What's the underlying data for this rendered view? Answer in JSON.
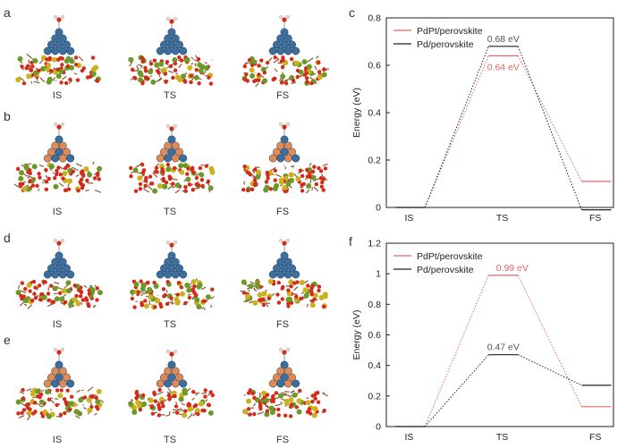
{
  "panels": {
    "a": {
      "letter": "a",
      "labels": [
        "IS",
        "TS",
        "FS"
      ]
    },
    "b": {
      "letter": "b",
      "labels": [
        "IS",
        "TS",
        "FS"
      ]
    },
    "d": {
      "letter": "d",
      "labels": [
        "IS",
        "TS",
        "FS"
      ]
    },
    "e": {
      "letter": "e",
      "labels": [
        "IS",
        "TS",
        "FS"
      ]
    }
  },
  "colors": {
    "pdpt": "#e06666",
    "pd": "#222222",
    "atom_pd": "#3d6e9e",
    "atom_pt": "#e08a55",
    "atom_o": "#d42a1a",
    "atom_la": "#6b9a2a",
    "atom_b": "#c9b21e"
  },
  "chart_data": [
    {
      "panel_letter": "c",
      "type": "line",
      "categories": [
        "IS",
        "TS",
        "FS"
      ],
      "ylabel": "Energy (eV)",
      "ylim": [
        0,
        0.8
      ],
      "yticks": [
        "0",
        "0.2",
        "0.4",
        "0.6",
        "0.8"
      ],
      "legend_position": "top-left",
      "series": [
        {
          "name": "PdPt/perovskite",
          "values": [
            0,
            0.64,
            0.11
          ],
          "color": "#e06666",
          "annotation": "0.64 eV"
        },
        {
          "name": "Pd/perovskite",
          "values": [
            0,
            0.68,
            -0.01
          ],
          "color": "#222222",
          "annotation": "0.68 eV"
        }
      ]
    },
    {
      "panel_letter": "f",
      "type": "line",
      "categories": [
        "IS",
        "TS",
        "FS"
      ],
      "ylabel": "Energy (eV)",
      "ylim": [
        0,
        1.2
      ],
      "yticks": [
        "0",
        "0.2",
        "0.4",
        "0.6",
        "0.8",
        "1",
        "1.2"
      ],
      "legend_position": "top-left",
      "series": [
        {
          "name": "PdPt/perovskite",
          "values": [
            0,
            0.99,
            0.13
          ],
          "color": "#e06666",
          "annotation": "0.99 eV"
        },
        {
          "name": "Pd/perovskite",
          "values": [
            0,
            0.47,
            0.27
          ],
          "color": "#222222",
          "annotation": "0.47 eV"
        }
      ]
    }
  ]
}
